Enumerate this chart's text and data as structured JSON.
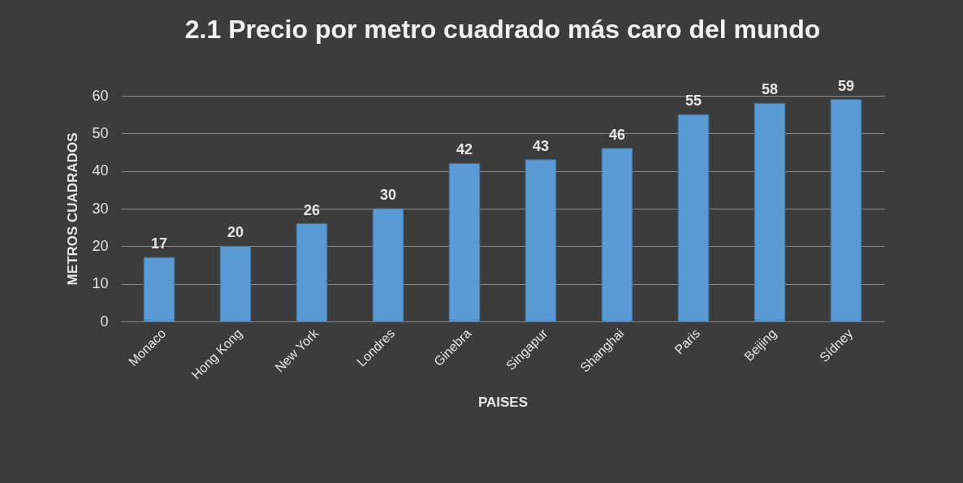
{
  "chart_data": {
    "type": "bar",
    "title": "2.1 Precio por metro cuadrado más caro del mundo",
    "xlabel": "PAISES",
    "ylabel": "METROS CUADRADOS",
    "categories": [
      "Monaco",
      "Hong Kong",
      "New York",
      "Londres",
      "Ginebra",
      "Singapur",
      "Shanghai",
      "Paris",
      "Beijing",
      "Sídney"
    ],
    "values": [
      17,
      20,
      26,
      30,
      42,
      43,
      46,
      55,
      58,
      59
    ],
    "color": "#5b9bd5",
    "ylim": [
      0,
      60
    ],
    "yticks": [
      0,
      10,
      20,
      30,
      40,
      50,
      60
    ],
    "grid": "y",
    "data_labels": true
  }
}
